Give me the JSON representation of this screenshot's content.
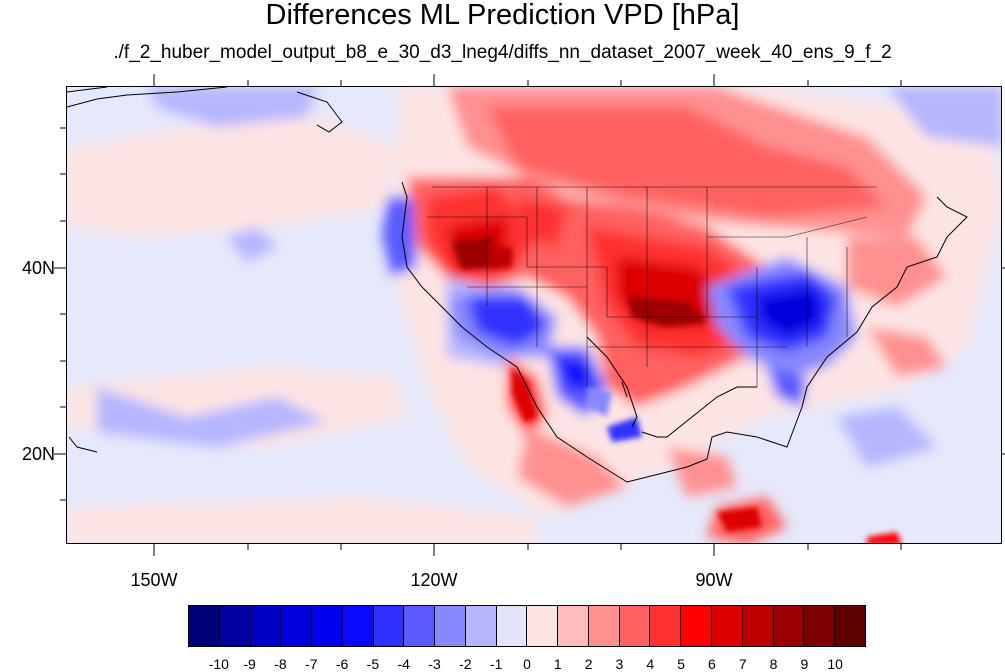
{
  "title": "Differences ML Prediction VPD [hPa]",
  "subtitle": "./f_2_huber_model_output_b8_e_30_d3_lneg4/diffs_nn_dataset_2007_week_40_ens_9_f_2",
  "map": {
    "projection": "cylindrical equidistant",
    "lon_range": [
      -160,
      -60
    ],
    "lat_range": [
      10,
      60
    ],
    "x_tick_labels": [
      "150W",
      "120W",
      "90W"
    ],
    "y_tick_labels": [
      "40N",
      "20N"
    ],
    "variable": "VPD difference",
    "units": "hPa"
  },
  "colorbar": {
    "labels": [
      "-10",
      "-9",
      "-8",
      "-7",
      "-6",
      "-5",
      "-4",
      "-3",
      "-2",
      "-1",
      "0",
      "1",
      "2",
      "3",
      "4",
      "5",
      "6",
      "7",
      "8",
      "9",
      "10"
    ],
    "colors": [
      "#00007a",
      "#0000a0",
      "#0000c4",
      "#0000de",
      "#0000f0",
      "#0a0aff",
      "#3030ff",
      "#5a5aff",
      "#8888ff",
      "#b6b6ff",
      "#e4e4fa",
      "#fde4e4",
      "#ffbcbc",
      "#ff9090",
      "#ff6060",
      "#ff3232",
      "#ff0000",
      "#dc0000",
      "#bc0000",
      "#9c0000",
      "#7c0000",
      "#600000"
    ]
  }
}
